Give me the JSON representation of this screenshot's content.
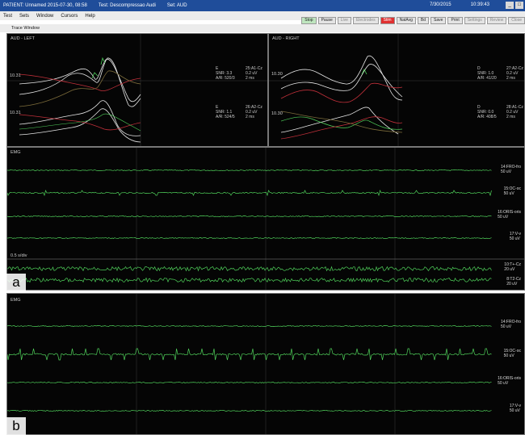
{
  "titlebar": {
    "patient": "PATIENT: Unnamed 2015-07-30, 08:58",
    "test": "Test: Descompressao Audi",
    "set": "Set: AUD",
    "date": "7/30/2015",
    "time": "10:39:43"
  },
  "menu": [
    "Test",
    "Sets",
    "Window",
    "Cursors",
    "Help"
  ],
  "toolbar": [
    "Stop",
    "Pause",
    "Live",
    "Electrodes",
    "Stim",
    "NatAvg",
    "Bd",
    "Save",
    "Print",
    "Settings",
    "Review",
    "Close"
  ],
  "trace_window_label": "Trace Window",
  "aep_left": {
    "title": "AUD - LEFT",
    "y_marker_1": "10.31",
    "y_marker_2": "10.31",
    "info_1": "E\nSNR: 3.3\nA/R: 520/3",
    "ch_1": "25:A1-Cz\n0.2 uV\n2 ms",
    "info_2": "E\nSNR: 1.1\nA/R: 524/5",
    "ch_2": "26:A2-Cz\n0.2 uV\n2 ms"
  },
  "aep_right": {
    "title": "AUD - RIGHT",
    "y_marker_1": "10.30",
    "y_marker_2": "10.30",
    "info_1": "D\nSNR: 1.0\nA/R: 41/20",
    "ch_1": "27:A2-Cz\n0.2 uV\n2 ms",
    "info_2": "D\nSNR: 0.0\nA/R: 408/5",
    "ch_2": "28:A1-Cz\n0.2 uV\n2 ms"
  },
  "emg_a": {
    "title": "EMG",
    "channels": [
      "14:FRO-fro\n50 uV",
      "15:OC-oc\n50 uV",
      "16:ORIS-oris\n50 uV",
      "17:V-v\n50 uV"
    ],
    "time_scale": "0.5 s/div",
    "bottom_channels": [
      "10:T+-Cz\n20 uV",
      "8:T2-Cz\n20 uV"
    ]
  },
  "emg_b": {
    "title": "EMG",
    "channels": [
      "14:FRO-fro\n50 uV",
      "15:OC-oc\n50 uV",
      "16:ORIS-oris\n50 uV",
      "17:V-v\n50 uV"
    ]
  },
  "fig_labels": {
    "a": "a",
    "b": "b"
  },
  "colors": {
    "trace_green": "#4fd05a",
    "trace_white": "#e6e6e6",
    "trace_red": "#c0303a",
    "trace_dark": "#7a6a3a",
    "titlebar": "#1f4d9a"
  }
}
